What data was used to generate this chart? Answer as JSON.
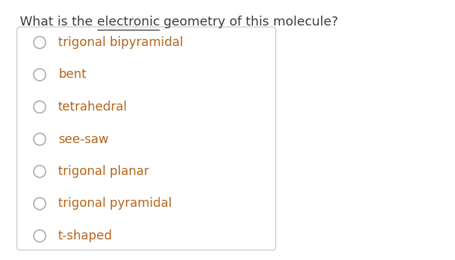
{
  "title_parts": [
    "What is the ",
    "electronic",
    " geometry of this molecule?"
  ],
  "title_color": "#3d3d3d",
  "title_fontsize": 13,
  "options": [
    "trigonal bipyramidal",
    "bent",
    "tetrahedral",
    "see-saw",
    "trigonal planar",
    "trigonal pyramidal",
    "t-shaped"
  ],
  "option_color": "#b5651d",
  "circle_color": "#aaaaaa",
  "option_fontsize": 12.5,
  "box_edge_color": "#cccccc",
  "background_color": "#ffffff",
  "box_background": "#ffffff",
  "fig_width": 6.42,
  "fig_height": 3.67,
  "dpi": 100
}
